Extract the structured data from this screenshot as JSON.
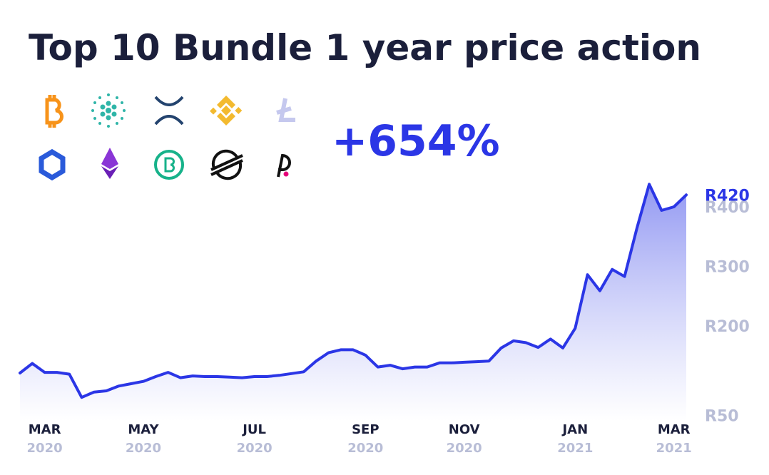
{
  "chart_data": {
    "type": "area",
    "title": "Top 10 Bundle 1 year price action",
    "annotation": "+654%",
    "categories": [
      null,
      null,
      [
        "MAR",
        "2020"
      ],
      null,
      null,
      null,
      null,
      null,
      null,
      null,
      [
        "MAY",
        "2020"
      ],
      null,
      null,
      null,
      null,
      null,
      null,
      null,
      null,
      [
        "JUL",
        "2020"
      ],
      null,
      null,
      null,
      null,
      null,
      null,
      null,
      null,
      [
        "SEP",
        "2020"
      ],
      null,
      null,
      null,
      null,
      null,
      null,
      null,
      [
        "NOV",
        "2020"
      ],
      null,
      null,
      null,
      null,
      null,
      null,
      null,
      null,
      [
        "JAN",
        "2021"
      ],
      null,
      null,
      null,
      null,
      null,
      null,
      null,
      [
        "MAR",
        "2021"
      ],
      null
    ],
    "series": [
      {
        "color": "#2b36e6",
        "values": [
          121,
          137,
          122,
          122,
          119,
          80,
          89,
          91,
          99,
          103,
          107,
          115,
          122,
          113,
          116,
          115,
          115,
          114,
          113,
          115,
          115,
          117,
          120,
          123,
          141,
          155,
          160,
          160,
          151,
          131,
          134,
          128,
          131,
          131,
          138,
          138,
          139,
          140,
          141,
          163,
          175,
          172,
          164,
          178,
          163,
          196,
          286,
          259,
          295,
          283,
          364,
          438,
          394,
          400,
          420
        ],
        "value_labels": [
          null,
          null,
          null,
          null,
          null,
          null,
          null,
          null,
          null,
          null,
          null,
          null,
          null,
          null,
          null,
          null,
          null,
          null,
          null,
          null,
          null,
          null,
          null,
          null,
          null,
          null,
          null,
          null,
          null,
          null,
          null,
          null,
          null,
          null,
          null,
          null,
          null,
          null,
          null,
          null,
          null,
          null,
          null,
          null,
          null,
          null,
          null,
          null,
          null,
          null,
          null,
          null,
          null,
          null,
          "R420"
        ]
      }
    ],
    "ylim": [
      40,
      480
    ],
    "yticks": [
      {
        "value": 50,
        "label": "R50"
      },
      {
        "value": 200,
        "label": "R200"
      },
      {
        "value": 300,
        "label": "R300"
      },
      {
        "value": 400,
        "label": "R400"
      }
    ],
    "grid": false
  }
}
